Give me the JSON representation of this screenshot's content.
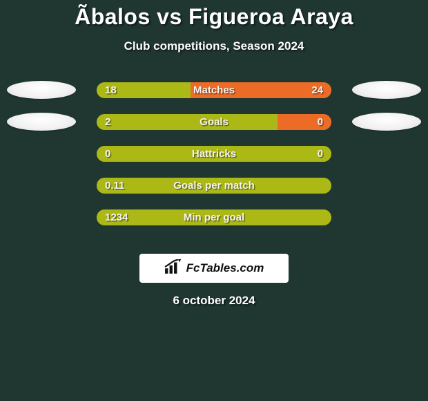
{
  "title": "Ãbalos vs Figueroa Araya",
  "subtitle": "Club competitions, Season 2024",
  "brand": "FcTables.com",
  "date": "6 october 2024",
  "colors": {
    "left_fill": "#acb816",
    "right_fill": "#ec6c27",
    "bar_bg": "#acb816",
    "page_bg": "#203731"
  },
  "rows": [
    {
      "name": "Matches",
      "left": "18",
      "right": "24",
      "left_pct": 40,
      "show_photos": true
    },
    {
      "name": "Goals",
      "left": "2",
      "right": "0",
      "left_pct": 77,
      "show_photos": true
    },
    {
      "name": "Hattricks",
      "left": "0",
      "right": "0",
      "left_pct": 100,
      "show_photos": false
    },
    {
      "name": "Goals per match",
      "left": "0.11",
      "right": "",
      "left_pct": 100,
      "show_photos": false
    },
    {
      "name": "Min per goal",
      "left": "1234",
      "right": "",
      "left_pct": 100,
      "show_photos": false
    }
  ]
}
